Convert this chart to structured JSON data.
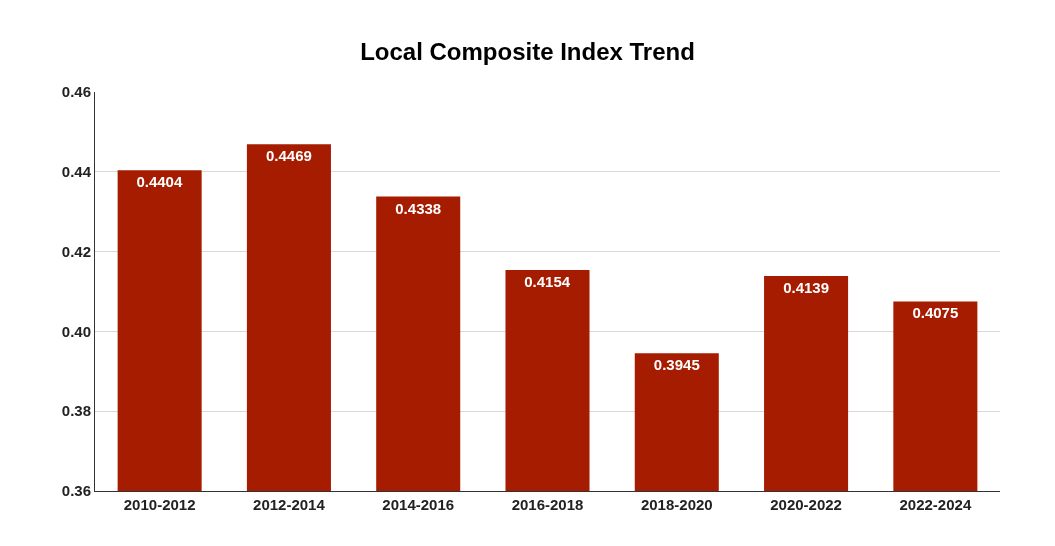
{
  "chart_data": {
    "type": "bar",
    "title": "Local Composite Index Trend",
    "categories": [
      "2010-2012",
      "2012-2014",
      "2014-2016",
      "2016-2018",
      "2018-2020",
      "2020-2022",
      "2022-2024"
    ],
    "values": [
      0.4404,
      0.4469,
      0.4338,
      0.4154,
      0.3945,
      0.4139,
      0.4075
    ],
    "color": "#a61c00",
    "ylim": [
      0.36,
      0.46
    ],
    "yticks": [
      0.36,
      0.38,
      {
        "value": 0.4,
        "label": "0.40"
      },
      0.42,
      0.44,
      0.46
    ],
    "grid": "y",
    "data_labels": true
  }
}
